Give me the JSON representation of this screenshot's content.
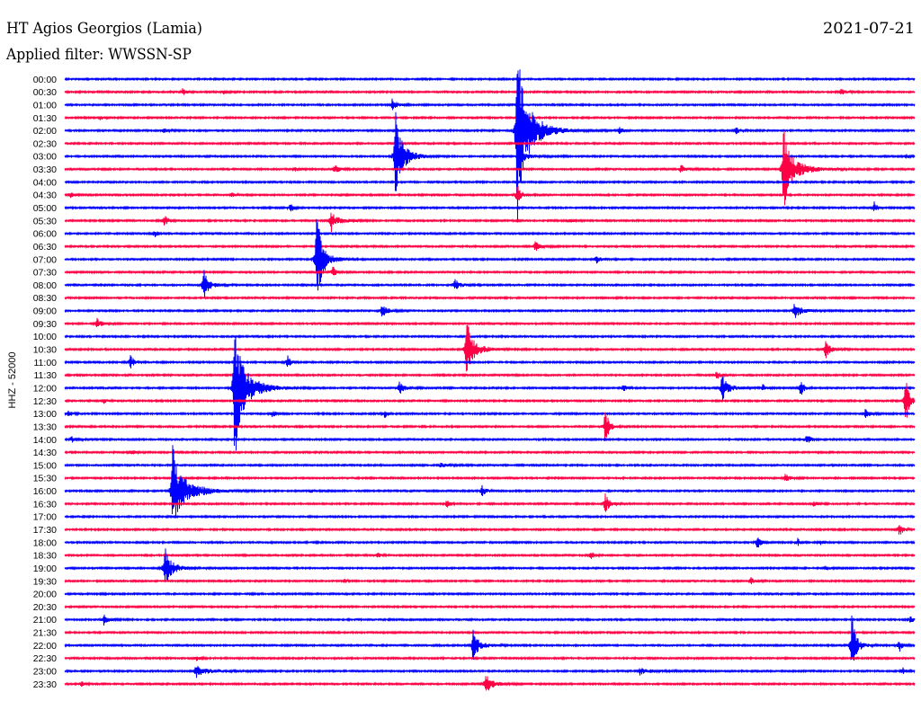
{
  "chart_data": {
    "type": "line",
    "title": "HT Agios Georgios (Lamia)",
    "subtitle": "Applied filter: WWSSN-SP",
    "date": "2021-07-21",
    "ylabel": "HHZ - 52000",
    "xlim": [
      0,
      30
    ],
    "colors": {
      "hour": "#0000ff",
      "half_hour": "#ff0044"
    },
    "series": [
      {
        "name": "00:00",
        "events": []
      },
      {
        "name": "00:30",
        "events": [
          {
            "minute": 4.16,
            "amplitude": 0.25,
            "duration": 0.3
          },
          {
            "minute": 5.62,
            "amplitude": 0.2,
            "duration": 0.2
          },
          {
            "minute": 27.4,
            "amplitude": 0.3,
            "duration": 0.4
          }
        ]
      },
      {
        "name": "01:00",
        "events": [
          {
            "minute": 11.56,
            "amplitude": 0.55,
            "duration": 0.5
          }
        ]
      },
      {
        "name": "01:30",
        "events": [
          {
            "minute": 1.27,
            "amplitude": 0.2,
            "duration": 0.2
          }
        ]
      },
      {
        "name": "02:00",
        "events": [
          {
            "minute": 3.49,
            "amplitude": 0.2,
            "duration": 0.3
          },
          {
            "minute": 15.97,
            "amplitude": 9.0,
            "duration": 1.4
          },
          {
            "minute": 19.56,
            "amplitude": 0.35,
            "duration": 0.3
          },
          {
            "minute": 23.68,
            "amplitude": 0.25,
            "duration": 0.5
          }
        ]
      },
      {
        "name": "02:30",
        "events": []
      },
      {
        "name": "03:00",
        "events": [
          {
            "minute": 11.68,
            "amplitude": 4.2,
            "duration": 0.9
          },
          {
            "minute": 16.2,
            "amplitude": 0.35,
            "duration": 1.2
          },
          {
            "minute": 29.7,
            "amplitude": 0.25,
            "duration": 0.2
          }
        ]
      },
      {
        "name": "03:30",
        "events": [
          {
            "minute": 8.13,
            "amplitude": 0.15,
            "duration": 0.5
          },
          {
            "minute": 9.52,
            "amplitude": 0.4,
            "duration": 0.5
          },
          {
            "minute": 21.75,
            "amplitude": 0.35,
            "duration": 0.6
          },
          {
            "minute": 25.37,
            "amplitude": 3.8,
            "duration": 1.3
          }
        ]
      },
      {
        "name": "04:00",
        "events": [
          {
            "minute": 28.0,
            "amplitude": 0.15,
            "duration": 0.2
          }
        ]
      },
      {
        "name": "04:30",
        "events": [
          {
            "minute": 0.2,
            "amplitude": 0.25,
            "duration": 0.4
          },
          {
            "minute": 5.9,
            "amplitude": 0.2,
            "duration": 0.2
          },
          {
            "minute": 15.97,
            "amplitude": 0.9,
            "duration": 0.3
          }
        ]
      },
      {
        "name": "05:00",
        "events": [
          {
            "minute": 7.97,
            "amplitude": 0.45,
            "duration": 0.1
          },
          {
            "minute": 28.57,
            "amplitude": 0.45,
            "duration": 0.3
          }
        ]
      },
      {
        "name": "05:30",
        "events": [
          {
            "minute": 3.52,
            "amplitude": 0.45,
            "duration": 0.3
          },
          {
            "minute": 9.4,
            "amplitude": 0.9,
            "duration": 1.0
          },
          {
            "minute": 17.78,
            "amplitude": 0.15,
            "duration": 0.5
          }
        ]
      },
      {
        "name": "06:00",
        "events": [
          {
            "minute": 3.17,
            "amplitude": 0.3,
            "duration": 0.2
          }
        ]
      },
      {
        "name": "06:30",
        "events": [
          {
            "minute": 16.6,
            "amplitude": 0.45,
            "duration": 0.5
          }
        ]
      },
      {
        "name": "07:00",
        "events": [
          {
            "minute": 8.89,
            "amplitude": 5.0,
            "duration": 0.7
          },
          {
            "minute": 18.76,
            "amplitude": 0.35,
            "duration": 0.4
          }
        ]
      },
      {
        "name": "07:30",
        "events": [
          {
            "minute": 9.46,
            "amplitude": 0.45,
            "duration": 0.3
          }
        ]
      },
      {
        "name": "08:00",
        "events": [
          {
            "minute": 4.89,
            "amplitude": 1.4,
            "duration": 0.6
          },
          {
            "minute": 13.75,
            "amplitude": 0.55,
            "duration": 0.6
          }
        ]
      },
      {
        "name": "08:30",
        "events": []
      },
      {
        "name": "09:00",
        "events": [
          {
            "minute": 11.2,
            "amplitude": 0.55,
            "duration": 0.6
          },
          {
            "minute": 25.75,
            "amplitude": 0.75,
            "duration": 0.9
          }
        ]
      },
      {
        "name": "09:30",
        "events": [
          {
            "minute": 1.14,
            "amplitude": 0.4,
            "duration": 0.5
          }
        ]
      },
      {
        "name": "10:00",
        "events": []
      },
      {
        "name": "10:30",
        "events": [
          {
            "minute": 14.19,
            "amplitude": 2.6,
            "duration": 1.0
          },
          {
            "minute": 26.86,
            "amplitude": 0.75,
            "duration": 0.5
          }
        ]
      },
      {
        "name": "11:00",
        "events": [
          {
            "minute": 2.32,
            "amplitude": 0.55,
            "duration": 0.4
          },
          {
            "minute": 7.87,
            "amplitude": 0.55,
            "duration": 0.2
          }
        ]
      },
      {
        "name": "11:30",
        "events": [
          {
            "minute": 23.0,
            "amplitude": 0.45,
            "duration": 0.2
          }
        ]
      },
      {
        "name": "12:00",
        "events": [
          {
            "minute": 6.0,
            "amplitude": 6.8,
            "duration": 1.3
          },
          {
            "minute": 11.81,
            "amplitude": 0.55,
            "duration": 0.6
          },
          {
            "minute": 19.71,
            "amplitude": 0.3,
            "duration": 0.2
          },
          {
            "minute": 23.2,
            "amplitude": 1.2,
            "duration": 0.8
          },
          {
            "minute": 24.63,
            "amplitude": 0.3,
            "duration": 0.3
          },
          {
            "minute": 25.97,
            "amplitude": 0.7,
            "duration": 0.3
          }
        ]
      },
      {
        "name": "12:30",
        "events": [
          {
            "minute": 1.37,
            "amplitude": 0.2,
            "duration": 0.3
          },
          {
            "minute": 29.68,
            "amplitude": 2.0,
            "duration": 0.3
          }
        ]
      },
      {
        "name": "13:00",
        "events": [
          {
            "minute": 0.13,
            "amplitude": 0.35,
            "duration": 0.3
          },
          {
            "minute": 7.3,
            "amplitude": 0.3,
            "duration": 0.4
          },
          {
            "minute": 11.3,
            "amplitude": 0.4,
            "duration": 0.05
          },
          {
            "minute": 28.25,
            "amplitude": 0.35,
            "duration": 0.5
          }
        ]
      },
      {
        "name": "13:30",
        "events": [
          {
            "minute": 19.08,
            "amplitude": 1.7,
            "duration": 0.3
          }
        ]
      },
      {
        "name": "14:00",
        "events": [
          {
            "minute": 0.25,
            "amplitude": 0.3,
            "duration": 0.4
          },
          {
            "minute": 26.19,
            "amplitude": 0.45,
            "duration": 0.3
          }
        ]
      },
      {
        "name": "14:30",
        "events": [
          {
            "minute": 2.32,
            "amplitude": 0.3,
            "duration": 0.3
          }
        ]
      },
      {
        "name": "15:00",
        "events": [
          {
            "minute": 13.27,
            "amplitude": 0.2,
            "duration": 1.0
          }
        ]
      },
      {
        "name": "15:30",
        "events": [
          {
            "minute": 25.43,
            "amplitude": 0.35,
            "duration": 0.4
          }
        ]
      },
      {
        "name": "16:00",
        "events": [
          {
            "minute": 3.81,
            "amplitude": 4.3,
            "duration": 1.6
          },
          {
            "minute": 8.67,
            "amplitude": 0.15,
            "duration": 0.4
          },
          {
            "minute": 14.73,
            "amplitude": 0.45,
            "duration": 0.4
          }
        ]
      },
      {
        "name": "16:30",
        "events": [
          {
            "minute": 13.49,
            "amplitude": 0.35,
            "duration": 0.1
          },
          {
            "minute": 19.08,
            "amplitude": 0.85,
            "duration": 0.4
          },
          {
            "minute": 26.44,
            "amplitude": 0.2,
            "duration": 0.4
          }
        ]
      },
      {
        "name": "17:00",
        "events": []
      },
      {
        "name": "17:30",
        "events": [
          {
            "minute": 29.46,
            "amplitude": 0.5,
            "duration": 0.3
          }
        ]
      },
      {
        "name": "18:00",
        "events": [
          {
            "minute": 24.44,
            "amplitude": 0.55,
            "duration": 0.3
          },
          {
            "minute": 25.87,
            "amplitude": 0.3,
            "duration": 0.1
          },
          {
            "minute": 26.67,
            "amplitude": 0.25,
            "duration": 0.1
          }
        ]
      },
      {
        "name": "18:30",
        "events": [
          {
            "minute": 11.05,
            "amplitude": 0.2,
            "duration": 0.3
          },
          {
            "minute": 18.57,
            "amplitude": 0.35,
            "duration": 0.1
          }
        ]
      },
      {
        "name": "19:00",
        "events": [
          {
            "minute": 3.52,
            "amplitude": 2.0,
            "duration": 0.9
          },
          {
            "minute": 26.86,
            "amplitude": 0.25,
            "duration": 0.2
          }
        ]
      },
      {
        "name": "19:30",
        "events": [
          {
            "minute": 9.87,
            "amplitude": 0.2,
            "duration": 0.2
          },
          {
            "minute": 24.22,
            "amplitude": 0.25,
            "duration": 0.4
          }
        ]
      },
      {
        "name": "20:00",
        "events": []
      },
      {
        "name": "20:30",
        "events": []
      },
      {
        "name": "21:00",
        "events": [
          {
            "minute": 1.37,
            "amplitude": 0.45,
            "duration": 0.5
          },
          {
            "minute": 29.84,
            "amplitude": 0.4,
            "duration": 0.1
          }
        ]
      },
      {
        "name": "21:30",
        "events": []
      },
      {
        "name": "22:00",
        "events": [
          {
            "minute": 14.41,
            "amplitude": 1.3,
            "duration": 0.8
          },
          {
            "minute": 27.78,
            "amplitude": 2.5,
            "duration": 0.5
          },
          {
            "minute": 29.46,
            "amplitude": 0.5,
            "duration": 0.2
          }
        ]
      },
      {
        "name": "22:30",
        "events": [
          {
            "minute": 4.63,
            "amplitude": 0.2,
            "duration": 0.3
          }
        ]
      },
      {
        "name": "23:00",
        "events": [
          {
            "minute": 4.63,
            "amplitude": 0.55,
            "duration": 1.8
          },
          {
            "minute": 20.3,
            "amplitude": 0.3,
            "duration": 1.7
          },
          {
            "minute": 29.56,
            "amplitude": 0.3,
            "duration": 0.3
          }
        ]
      },
      {
        "name": "23:30",
        "events": [
          {
            "minute": 0.57,
            "amplitude": 0.2,
            "duration": 0.3
          },
          {
            "minute": 14.86,
            "amplitude": 1.0,
            "duration": 0.8
          }
        ]
      }
    ]
  }
}
